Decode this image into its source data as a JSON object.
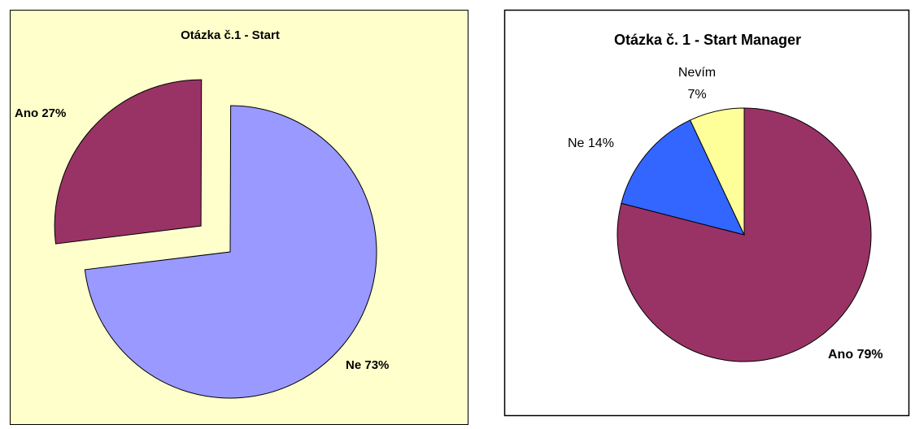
{
  "chart_data": [
    {
      "type": "pie",
      "title": "Otázka č.1 - Start",
      "categories": [
        "Ano",
        "Ne"
      ],
      "values": [
        27,
        73
      ],
      "value_labels": [
        "27%",
        "73%"
      ],
      "colors": [
        "#993366",
        "#9999ff"
      ],
      "background": "#ffffcc"
    },
    {
      "type": "pie",
      "title": "Otázka č. 1 -  Start Manager",
      "categories": [
        "Ano",
        "Ne",
        "Nevím"
      ],
      "values": [
        79,
        14,
        7
      ],
      "value_labels": [
        "79%",
        "14%",
        "7%"
      ],
      "colors": [
        "#993366",
        "#3366ff",
        "#ffff99"
      ],
      "background": "#ffffff"
    }
  ]
}
